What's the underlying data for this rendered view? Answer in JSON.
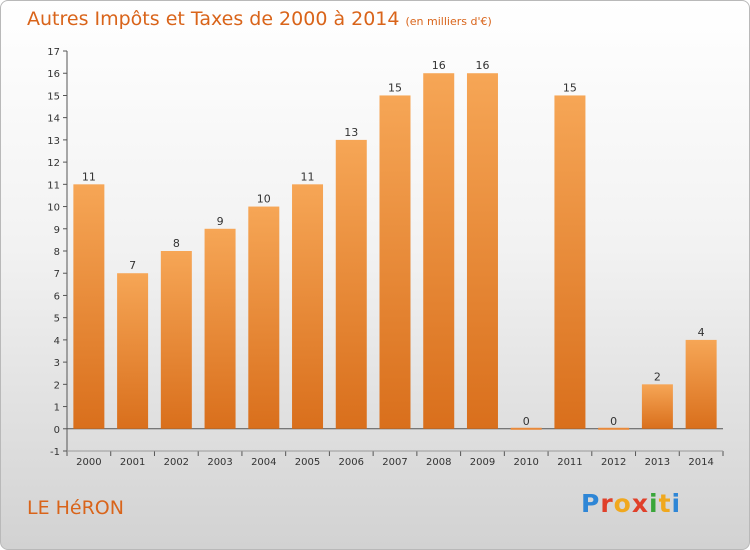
{
  "title": "Autres Impôts et Taxes de 2000 à 2014",
  "subtitle": "(en milliers d'€)",
  "commune": "LE HéRON",
  "logo": {
    "letters": [
      "P",
      "r",
      "o",
      "x",
      "i",
      "t",
      "i"
    ],
    "colors": [
      "#2e86d6",
      "#e0402a",
      "#f0a81e",
      "#e0402a",
      "#3aa63a",
      "#f0a81e",
      "#2e86d6"
    ]
  },
  "colors": {
    "accent": "#d9641a",
    "bar_top": "#f6a656",
    "bar_bottom": "#d96f1c"
  },
  "chart_data": {
    "type": "bar",
    "categories": [
      "2000",
      "2001",
      "2002",
      "2003",
      "2004",
      "2005",
      "2006",
      "2007",
      "2008",
      "2009",
      "2010",
      "2011",
      "2012",
      "2013",
      "2014"
    ],
    "values": [
      11,
      7,
      8,
      9,
      10,
      11,
      13,
      15,
      16,
      16,
      0,
      15,
      0,
      2,
      4
    ],
    "ylim": [
      -1,
      17
    ],
    "yticks": [
      -1,
      0,
      1,
      2,
      3,
      4,
      5,
      6,
      7,
      8,
      9,
      10,
      11,
      12,
      13,
      14,
      15,
      16,
      17
    ],
    "grid": false,
    "legend": "none"
  }
}
